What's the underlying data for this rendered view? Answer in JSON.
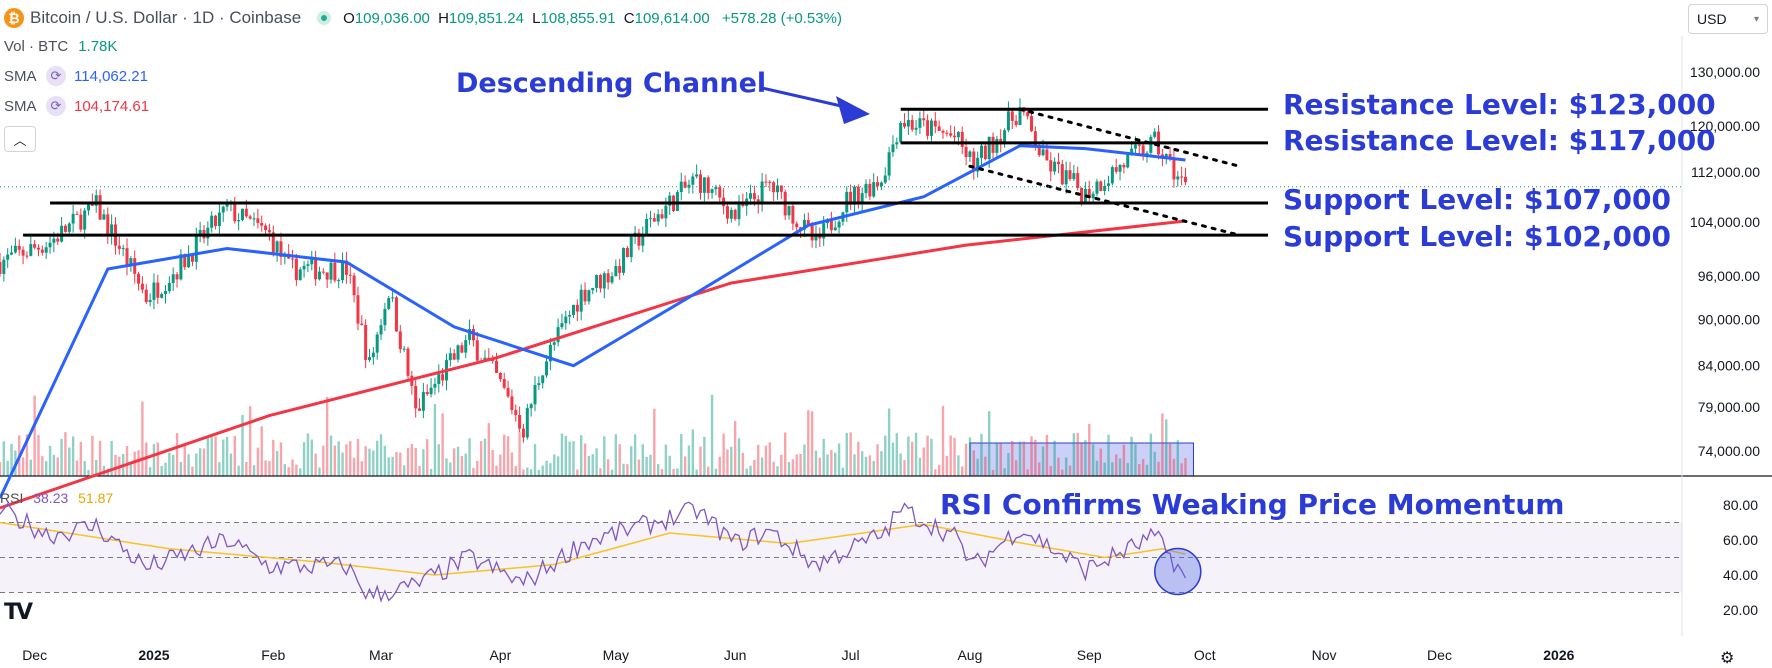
{
  "header": {
    "title": "Bitcoin / U.S. Dollar · 1D · Coinbase",
    "coin_icon": "bitcoin-icon",
    "ohlc": [
      {
        "k": "O",
        "v": "109,036.00"
      },
      {
        "k": "H",
        "v": "109,851.24"
      },
      {
        "k": "L",
        "v": "108,855.91"
      },
      {
        "k": "C",
        "v": "109,614.00"
      }
    ],
    "change": "+578.28 (+0.53%)",
    "currency": "USD"
  },
  "indicators": {
    "volume": {
      "label": "Vol · BTC",
      "value": "1.78K"
    },
    "sma_fast": {
      "label": "SMA",
      "value": "114,062.21",
      "color": "#2962ff"
    },
    "sma_slow": {
      "label": "SMA",
      "value": "104,174.61",
      "color": "#f23645"
    },
    "rsi": {
      "label": "RSI",
      "value": "38.23",
      "ma_value": "51.87"
    }
  },
  "annotations": {
    "channel": "Descending Channel",
    "resistance_1": "Resistance Level: $123,000",
    "resistance_2": "Resistance Level: $117,000",
    "support_1": "Support Level: $107,000",
    "support_2": "Support Level: $102,000",
    "rsi_note": "RSI Confirms Weaking Price Momentum"
  },
  "colors": {
    "annotation": "#2b3bd6",
    "up": "#089981",
    "down": "#f23645",
    "sma_fast": "#2962ff",
    "sma_slow": "#f23645",
    "rsi": "#7e57c2",
    "rsi_ma": "#f7c325"
  },
  "chart_data": [
    {
      "type": "candlestick",
      "price_ticks": [
        "130,000.00",
        "120,000.00",
        "112,000.00",
        "104,000.00",
        "96,000.00",
        "90,000.00",
        "84,000.00",
        "79,000.00",
        "74,000.00"
      ],
      "price_tick_values": [
        130000,
        120000,
        112000,
        104000,
        96000,
        90000,
        84000,
        79000,
        74000
      ],
      "scale": "log",
      "x_labels": [
        "Dec",
        "2025",
        "Feb",
        "Mar",
        "Apr",
        "May",
        "Jun",
        "Jul",
        "Aug",
        "Sep",
        "Oct",
        "Nov",
        "Dec",
        "2026"
      ],
      "x_label_dates": [
        "2024-12-01",
        "2025-01-01",
        "2025-02-01",
        "2025-03-01",
        "2025-04-01",
        "2025-05-01",
        "2025-06-01",
        "2025-07-01",
        "2025-08-01",
        "2025-09-01",
        "2025-10-01",
        "2025-11-01",
        "2025-12-01",
        "2026-01-01"
      ],
      "last_date": "2025-09-26",
      "last_close": 109614,
      "levels": [
        123000,
        117000,
        107000,
        102000
      ],
      "trendline_upper": [
        [
          "2025-08-14",
          123000
        ],
        [
          "2025-10-10",
          113000
        ]
      ],
      "trendline_lower": [
        [
          "2025-08-01",
          113000
        ],
        [
          "2025-10-10",
          102000
        ]
      ],
      "close_path": [
        [
          "2024-11-22",
          98000
        ],
        [
          "2024-12-05",
          101000
        ],
        [
          "2024-12-17",
          106500
        ],
        [
          "2024-12-30",
          93000
        ],
        [
          "2025-01-07",
          97000
        ],
        [
          "2025-01-20",
          106000
        ],
        [
          "2025-01-31",
          102000
        ],
        [
          "2025-02-05",
          97000
        ],
        [
          "2025-02-20",
          97000
        ],
        [
          "2025-02-26",
          84000
        ],
        [
          "2025-03-03",
          94000
        ],
        [
          "2025-03-10",
          78500
        ],
        [
          "2025-03-24",
          87500
        ],
        [
          "2025-03-31",
          82500
        ],
        [
          "2025-04-07",
          76500
        ],
        [
          "2025-04-12",
          84000
        ],
        [
          "2025-04-22",
          93500
        ],
        [
          "2025-05-01",
          97000
        ],
        [
          "2025-05-10",
          104000
        ],
        [
          "2025-05-22",
          111000
        ],
        [
          "2025-06-01",
          105000
        ],
        [
          "2025-06-10",
          110000
        ],
        [
          "2025-06-22",
          100500
        ],
        [
          "2025-06-30",
          107500
        ],
        [
          "2025-07-09",
          111000
        ],
        [
          "2025-07-14",
          121000
        ],
        [
          "2025-07-28",
          118000
        ],
        [
          "2025-08-02",
          113000
        ],
        [
          "2025-08-14",
          123000
        ],
        [
          "2025-08-20",
          114000
        ],
        [
          "2025-08-31",
          108500
        ],
        [
          "2025-09-10",
          113500
        ],
        [
          "2025-09-18",
          117000
        ],
        [
          "2025-09-22",
          113000
        ],
        [
          "2025-09-26",
          109614
        ]
      ],
      "sma_fast_path": [
        [
          "2024-11-22",
          69000
        ],
        [
          "2024-12-20",
          97000
        ],
        [
          "2025-01-20",
          100000
        ],
        [
          "2025-02-20",
          98000
        ],
        [
          "2025-03-20",
          89000
        ],
        [
          "2025-04-20",
          84000
        ],
        [
          "2025-05-20",
          93000
        ],
        [
          "2025-06-20",
          103500
        ],
        [
          "2025-07-20",
          108000
        ],
        [
          "2025-08-14",
          116500
        ],
        [
          "2025-08-31",
          116000
        ],
        [
          "2025-09-26",
          114062
        ]
      ],
      "sma_slow_path": [
        [
          "2024-11-22",
          68000
        ],
        [
          "2025-01-31",
          78000
        ],
        [
          "2025-03-31",
          85000
        ],
        [
          "2025-05-31",
          95000
        ],
        [
          "2025-07-31",
          100500
        ],
        [
          "2025-09-26",
          104175
        ]
      ],
      "volume_highlight": [
        "2025-08-01",
        "2025-09-26"
      ]
    },
    {
      "type": "line",
      "ticks": [
        "80.00",
        "60.00",
        "40.00",
        "20.00"
      ],
      "tick_values": [
        80,
        60,
        40,
        20
      ],
      "bands": [
        70,
        50,
        30
      ],
      "rsi_path": [
        [
          "2024-11-22",
          77
        ],
        [
          "2024-12-05",
          63
        ],
        [
          "2024-12-17",
          68
        ],
        [
          "2024-12-30",
          44
        ],
        [
          "2025-01-20",
          60
        ],
        [
          "2025-01-31",
          45
        ],
        [
          "2025-02-20",
          45
        ],
        [
          "2025-02-26",
          28
        ],
        [
          "2025-03-10",
          34
        ],
        [
          "2025-03-24",
          50
        ],
        [
          "2025-04-07",
          35
        ],
        [
          "2025-04-22",
          58
        ],
        [
          "2025-05-22",
          77
        ],
        [
          "2025-06-01",
          58
        ],
        [
          "2025-06-10",
          65
        ],
        [
          "2025-06-22",
          46
        ],
        [
          "2025-07-10",
          64
        ],
        [
          "2025-07-14",
          78
        ],
        [
          "2025-07-28",
          62
        ],
        [
          "2025-08-02",
          45
        ],
        [
          "2025-08-14",
          67
        ],
        [
          "2025-08-31",
          43
        ],
        [
          "2025-09-18",
          62
        ],
        [
          "2025-09-22",
          51
        ],
        [
          "2025-09-26",
          38.23
        ]
      ],
      "rsi_ma_path": [
        [
          "2024-11-22",
          70
        ],
        [
          "2025-01-05",
          55
        ],
        [
          "2025-02-15",
          47
        ],
        [
          "2025-03-15",
          40
        ],
        [
          "2025-04-15",
          46
        ],
        [
          "2025-05-15",
          64
        ],
        [
          "2025-06-15",
          58
        ],
        [
          "2025-07-20",
          69
        ],
        [
          "2025-08-15",
          58
        ],
        [
          "2025-09-05",
          50
        ],
        [
          "2025-09-20",
          55
        ],
        [
          "2025-09-26",
          51.87
        ]
      ]
    }
  ]
}
